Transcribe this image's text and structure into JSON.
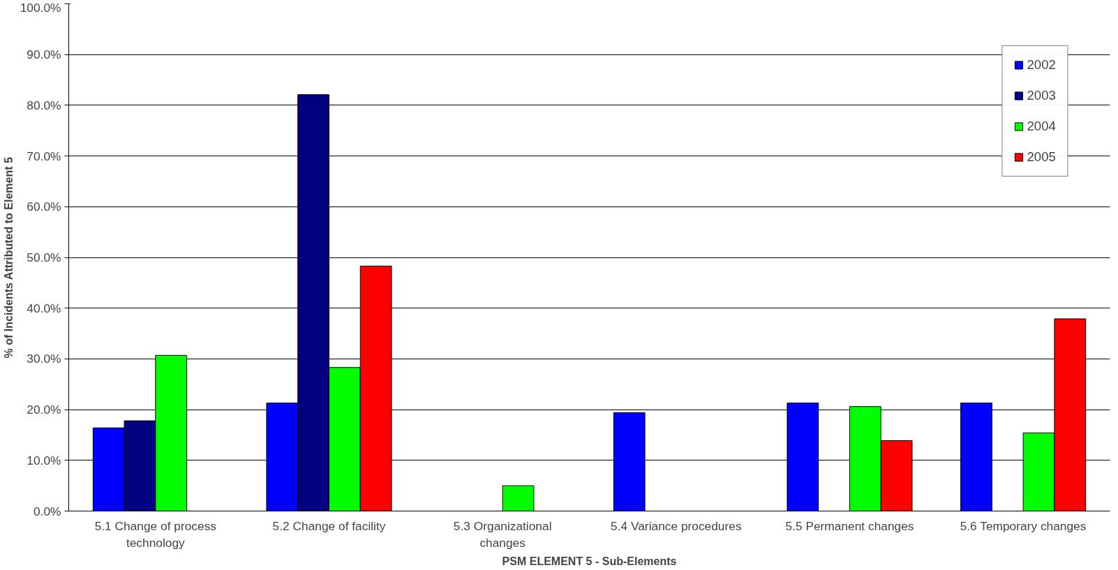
{
  "chart_data": {
    "type": "bar",
    "xlabel": "PSM ELEMENT 5 - Sub-Elements",
    "ylabel": "% of Incidents Attributed to Element 5",
    "categories": [
      "5.1 Change of process technology",
      "5.2 Change of facility",
      "5.3 Organizational changes",
      "5.4 Variance procedures",
      "5.5 Permanent changes",
      "5.6 Temporary changes"
    ],
    "series": [
      {
        "name": "2002",
        "color": "#0000ff",
        "values": [
          16.4,
          21.3,
          null,
          19.4,
          21.3,
          21.3
        ]
      },
      {
        "name": "2003",
        "color": "#000080",
        "values": [
          17.8,
          82.1,
          null,
          null,
          null,
          null
        ]
      },
      {
        "name": "2004",
        "color": "#00ff00",
        "values": [
          30.7,
          28.3,
          5.0,
          null,
          20.6,
          15.4
        ]
      },
      {
        "name": "2005",
        "color": "#ff0000",
        "values": [
          null,
          48.3,
          null,
          null,
          13.9,
          37.9
        ]
      }
    ],
    "ylim": [
      0,
      100
    ],
    "yticks": [
      {
        "value": 0,
        "label": "0.0%"
      },
      {
        "value": 10,
        "label": "10.0%"
      },
      {
        "value": 20,
        "label": "20.0%"
      },
      {
        "value": 30,
        "label": "30.0%"
      },
      {
        "value": 40,
        "label": "40.0%"
      },
      {
        "value": 50,
        "label": "50.0%"
      },
      {
        "value": 60,
        "label": "60.0%"
      },
      {
        "value": 70,
        "label": "70.0%"
      },
      {
        "value": 80,
        "label": "80.0%"
      },
      {
        "value": 90,
        "label": "90.0%"
      },
      {
        "value": 100,
        "label": "100.0%"
      }
    ],
    "grid": "y",
    "legend": "top right"
  }
}
